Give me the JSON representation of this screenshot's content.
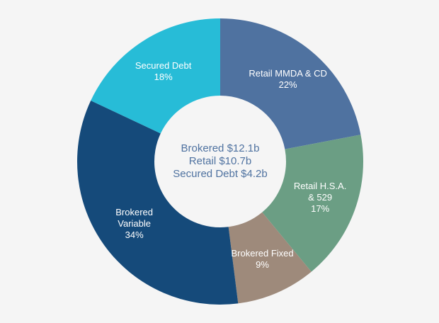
{
  "chart_data": {
    "type": "donut",
    "categories": [
      "Retail MMDA & CD",
      "Retail H.S.A. & 529",
      "Brokered Fixed",
      "Brokered Variable",
      "Secured Debt"
    ],
    "values": [
      22,
      17,
      9,
      34,
      18
    ],
    "value_labels": [
      "22%",
      "17%",
      "9%",
      "34%",
      "18%"
    ],
    "colors": [
      "#4f72a0",
      "#6b9e84",
      "#9e8a7b",
      "#154a7a",
      "#27bcd7"
    ],
    "annotations": [
      "Brokered $12.1b",
      "Retail $10.7b",
      "Secured Debt $4.2b"
    ]
  }
}
